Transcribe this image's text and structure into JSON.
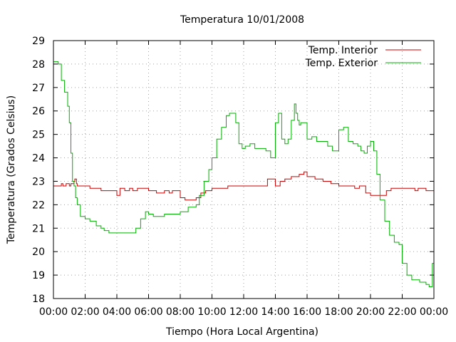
{
  "chart_data": {
    "type": "line",
    "title": "Temperatura 10/01/2008",
    "xlabel": "Tiempo (Hora Local Argentina)",
    "ylabel": "Temperatura (Grados Celsius)",
    "xlim": [
      0,
      24
    ],
    "ylim": [
      18,
      29
    ],
    "x_ticks": [
      "00:00",
      "02:00",
      "04:00",
      "06:00",
      "08:00",
      "10:00",
      "12:00",
      "14:00",
      "16:00",
      "18:00",
      "20:00",
      "22:00",
      "00:00"
    ],
    "y_ticks": [
      "18",
      "19",
      "20",
      "21",
      "22",
      "23",
      "24",
      "25",
      "26",
      "27",
      "28",
      "29"
    ],
    "grid": true,
    "legend_position": "top-right",
    "series": [
      {
        "name": "Temp. Interior",
        "color": "#cc0000",
        "x": [
          0,
          0.3,
          0.5,
          0.6,
          0.8,
          1.0,
          1.1,
          1.3,
          1.35,
          1.45,
          1.5,
          2.2,
          2.3,
          2.7,
          3.0,
          3.3,
          3.8,
          4.0,
          4.2,
          4.5,
          4.8,
          5.0,
          5.3,
          5.8,
          6.0,
          6.5,
          7.0,
          7.3,
          7.5,
          7.8,
          8.0,
          8.3,
          8.6,
          9.0,
          9.3,
          9.6,
          10.0,
          10.5,
          11.0,
          12.0,
          13.0,
          13.5,
          14.0,
          14.3,
          14.6,
          15.0,
          15.5,
          15.8,
          16.0,
          16.5,
          17.0,
          17.5,
          18.0,
          18.5,
          19.0,
          19.3,
          19.7,
          20.0,
          20.5,
          21.0,
          21.3,
          21.5,
          22.0,
          22.8,
          23.0,
          23.5,
          24.0
        ],
        "y": [
          22.8,
          22.8,
          22.9,
          22.8,
          22.9,
          22.8,
          22.9,
          23.0,
          23.1,
          22.9,
          22.8,
          22.8,
          22.7,
          22.7,
          22.6,
          22.6,
          22.6,
          22.4,
          22.7,
          22.6,
          22.7,
          22.6,
          22.7,
          22.7,
          22.6,
          22.5,
          22.6,
          22.5,
          22.6,
          22.6,
          22.3,
          22.2,
          22.2,
          22.3,
          22.5,
          22.6,
          22.7,
          22.7,
          22.8,
          22.8,
          22.8,
          23.1,
          22.8,
          23.0,
          23.1,
          23.2,
          23.3,
          23.4,
          23.2,
          23.1,
          23.0,
          22.9,
          22.8,
          22.8,
          22.7,
          22.8,
          22.5,
          22.4,
          22.4,
          22.6,
          22.7,
          22.7,
          22.7,
          22.6,
          22.7,
          22.6,
          22.6
        ]
      },
      {
        "name": "Temp. Exterior",
        "color": "#00b000",
        "x": [
          0,
          0.3,
          0.5,
          0.7,
          0.9,
          1.0,
          1.1,
          1.2,
          1.3,
          1.4,
          1.5,
          1.7,
          2.0,
          2.3,
          2.7,
          3.0,
          3.2,
          3.5,
          4.0,
          4.5,
          5.0,
          5.2,
          5.5,
          5.8,
          6.0,
          6.3,
          6.7,
          7.0,
          7.5,
          8.0,
          8.5,
          9.0,
          9.2,
          9.5,
          9.8,
          10.0,
          10.3,
          10.6,
          10.9,
          11.1,
          11.3,
          11.5,
          11.7,
          11.9,
          12.1,
          12.4,
          12.7,
          13.0,
          13.4,
          13.7,
          14.0,
          14.2,
          14.4,
          14.6,
          14.8,
          15.0,
          15.2,
          15.3,
          15.4,
          15.5,
          15.6,
          15.8,
          16.0,
          16.3,
          16.6,
          17.0,
          17.3,
          17.6,
          18.0,
          18.3,
          18.6,
          18.9,
          19.2,
          19.4,
          19.6,
          19.8,
          20.0,
          20.2,
          20.4,
          20.6,
          20.9,
          21.2,
          21.5,
          21.8,
          22.0,
          22.3,
          22.6,
          22.9,
          23.1,
          23.3,
          23.5,
          23.7,
          23.9,
          24.0
        ],
        "y": [
          28.1,
          28.0,
          27.3,
          26.8,
          26.2,
          25.5,
          24.2,
          23.0,
          22.8,
          22.3,
          22.0,
          21.5,
          21.4,
          21.3,
          21.1,
          21.0,
          20.9,
          20.8,
          20.8,
          20.8,
          20.8,
          21.0,
          21.4,
          21.7,
          21.6,
          21.5,
          21.5,
          21.6,
          21.6,
          21.7,
          21.9,
          22.0,
          22.4,
          23.0,
          23.5,
          24.0,
          24.8,
          25.3,
          25.8,
          25.9,
          25.9,
          25.5,
          24.6,
          24.4,
          24.5,
          24.6,
          24.4,
          24.4,
          24.3,
          24.0,
          25.5,
          25.9,
          24.8,
          24.6,
          24.8,
          25.6,
          26.3,
          25.9,
          25.6,
          25.4,
          25.5,
          25.5,
          24.8,
          24.9,
          24.7,
          24.7,
          24.5,
          24.3,
          25.2,
          25.3,
          24.7,
          24.6,
          24.5,
          24.3,
          24.2,
          24.5,
          24.7,
          24.3,
          23.3,
          22.2,
          21.3,
          20.7,
          20.4,
          20.3,
          19.5,
          19.0,
          18.8,
          18.8,
          18.7,
          18.7,
          18.6,
          18.5,
          19.5,
          20.8
        ]
      }
    ]
  }
}
